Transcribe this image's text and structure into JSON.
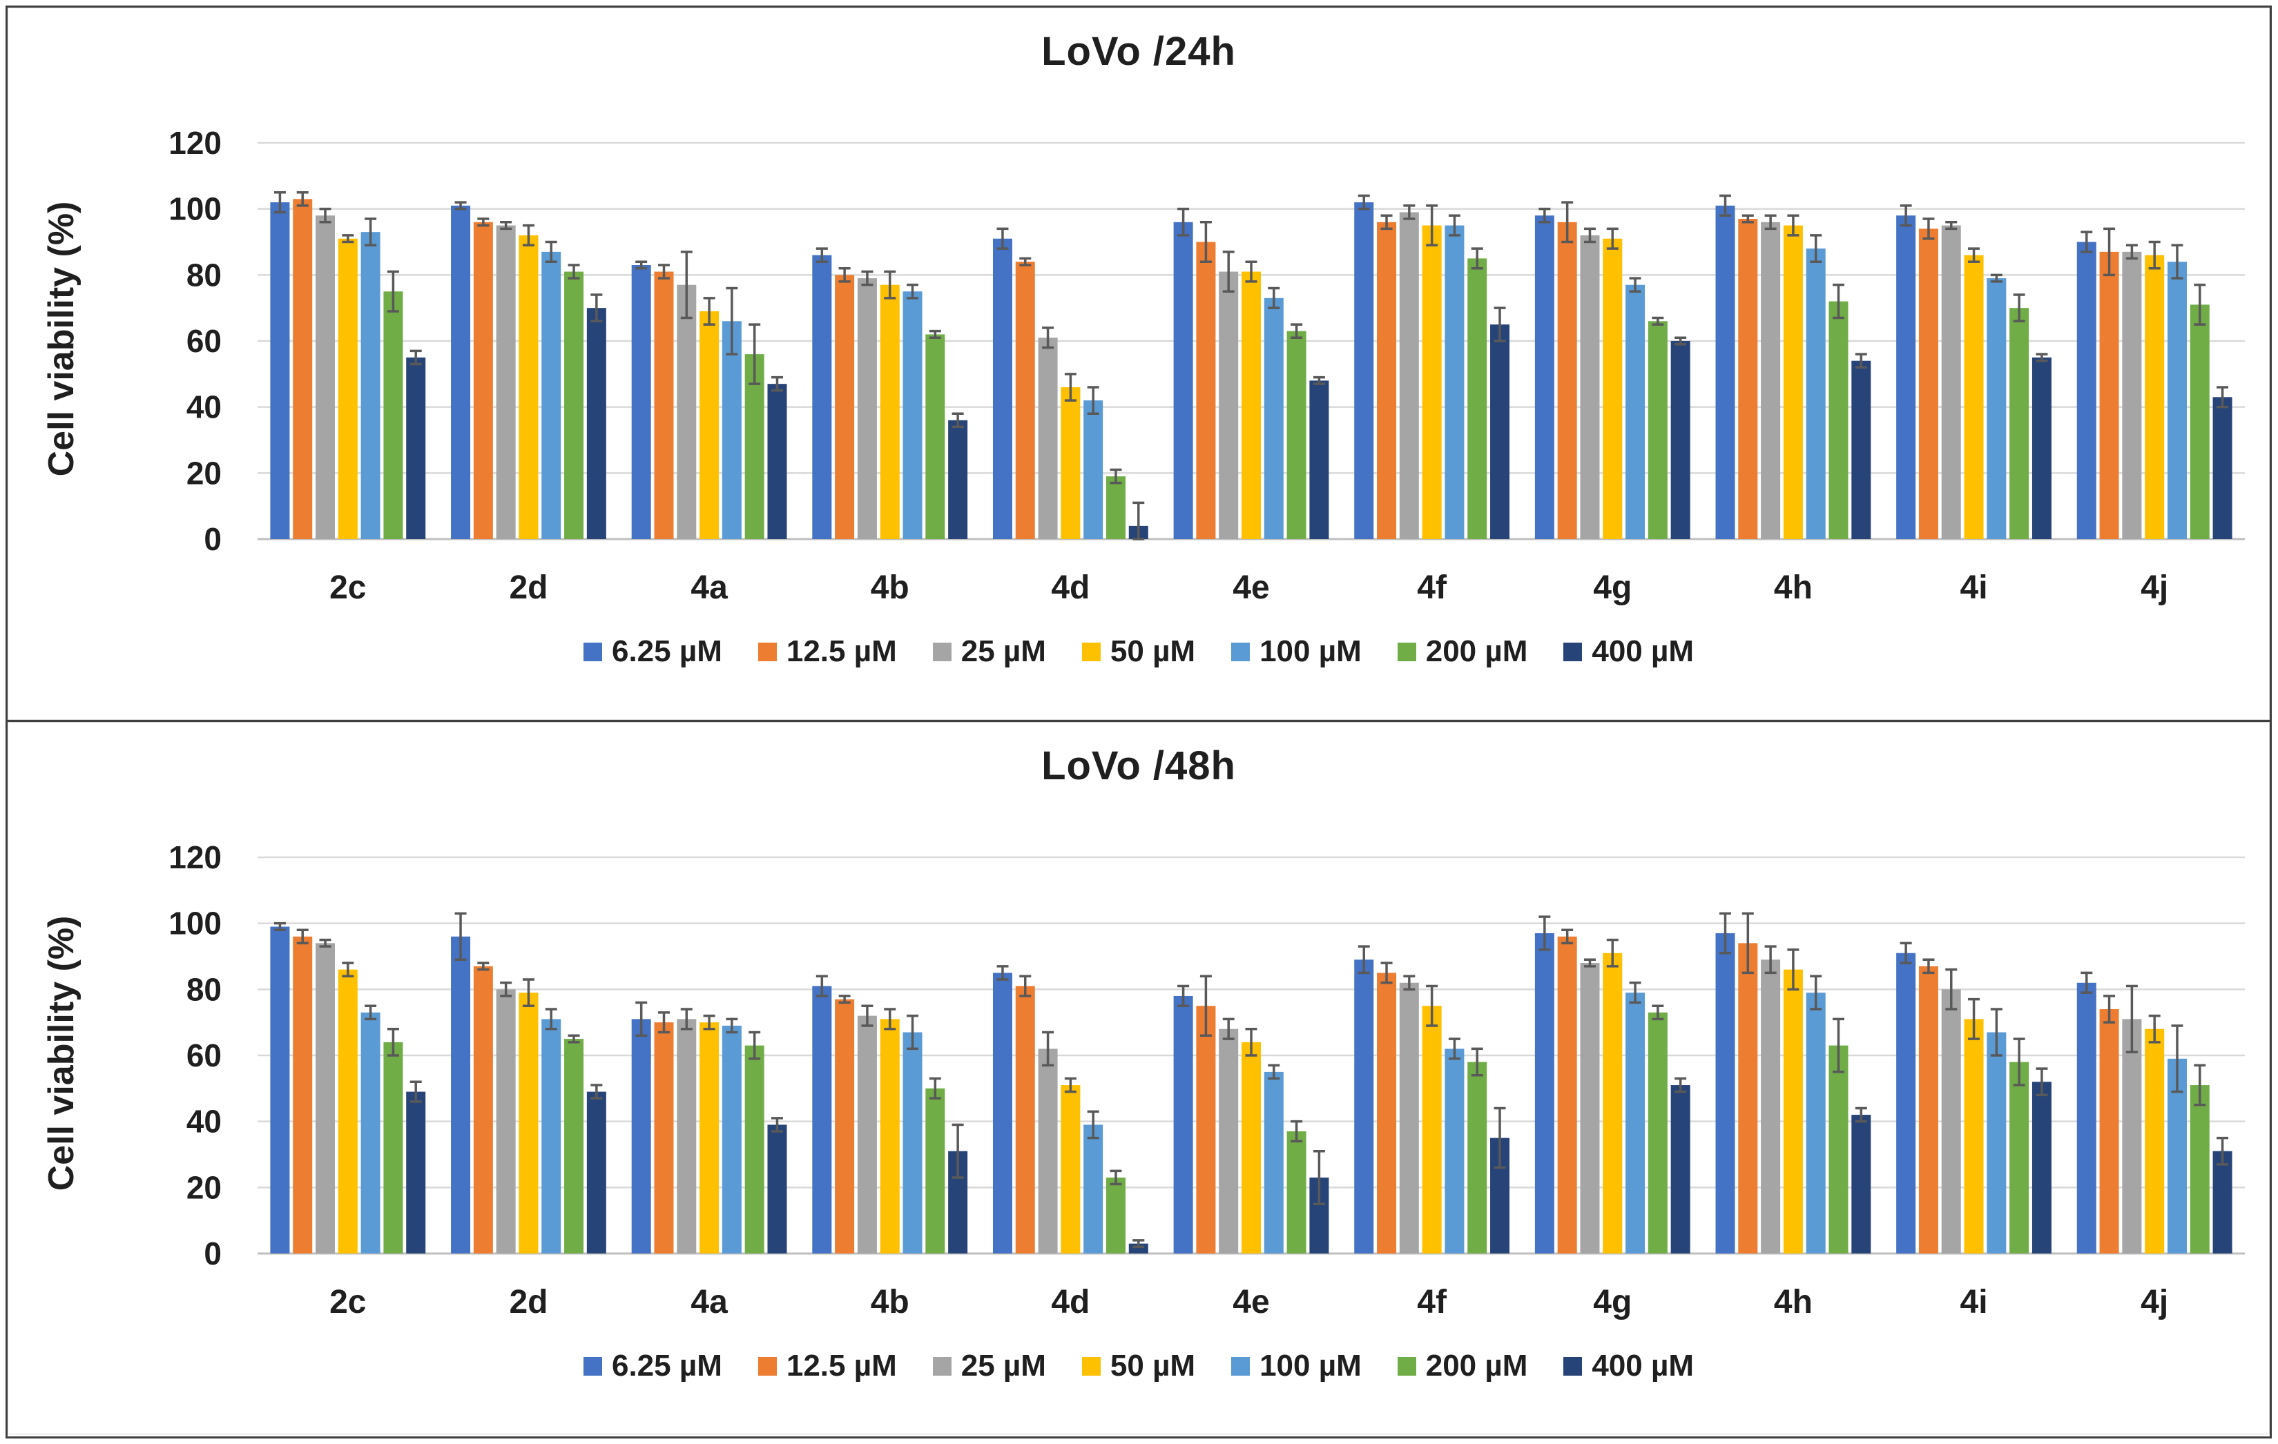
{
  "figure": {
    "outer_border_color": "#3f3f3f",
    "panel_border_color": "#d9d9d9",
    "grid_color": "#d9d9d9",
    "axis_color": "#bfbfbf",
    "error_bar_color": "#595959",
    "text_color": "#1f1f1f"
  },
  "chart_data": [
    {
      "type": "bar",
      "title": "LoVo /24h",
      "xlabel": "",
      "ylabel": "Cell viability (%)",
      "ylim": [
        0,
        120
      ],
      "yticks": [
        0,
        20,
        40,
        60,
        80,
        100,
        120
      ],
      "grid": true,
      "legend_position": "bottom",
      "error_bars": true,
      "categories": [
        "2c",
        "2d",
        "4a",
        "4b",
        "4d",
        "4e",
        "4f",
        "4g",
        "4h",
        "4i",
        "4j"
      ],
      "series": [
        {
          "name": "6.25 µM",
          "color": "#4472C4",
          "values": [
            102,
            101,
            83,
            86,
            91,
            96,
            102,
            98,
            101,
            98,
            90
          ],
          "errors": [
            3,
            1,
            1,
            2,
            3,
            4,
            2,
            2,
            3,
            3,
            3
          ]
        },
        {
          "name": "12.5 µM",
          "color": "#ED7D31",
          "values": [
            103,
            96,
            81,
            80,
            84,
            90,
            96,
            96,
            97,
            94,
            87
          ],
          "errors": [
            2,
            1,
            2,
            2,
            1,
            6,
            2,
            6,
            1,
            3,
            7
          ]
        },
        {
          "name": "25 µM",
          "color": "#A5A5A5",
          "values": [
            98,
            95,
            77,
            79,
            61,
            81,
            99,
            92,
            96,
            95,
            87
          ],
          "errors": [
            2,
            1,
            10,
            2,
            3,
            6,
            2,
            2,
            2,
            1,
            2
          ]
        },
        {
          "name": "50 µM",
          "color": "#FFC000",
          "values": [
            91,
            92,
            69,
            77,
            46,
            81,
            95,
            91,
            95,
            86,
            86
          ],
          "errors": [
            1,
            3,
            4,
            4,
            4,
            3,
            6,
            3,
            3,
            2,
            4
          ]
        },
        {
          "name": "100 µM",
          "color": "#5B9BD5",
          "values": [
            93,
            87,
            66,
            75,
            42,
            73,
            95,
            77,
            88,
            79,
            84
          ],
          "errors": [
            4,
            3,
            10,
            2,
            4,
            3,
            3,
            2,
            4,
            1,
            5
          ]
        },
        {
          "name": "200 µM",
          "color": "#70AD47",
          "values": [
            75,
            81,
            56,
            62,
            19,
            63,
            85,
            66,
            72,
            70,
            71
          ],
          "errors": [
            6,
            2,
            9,
            1,
            2,
            2,
            3,
            1,
            5,
            4,
            6
          ]
        },
        {
          "name": "400 µM",
          "color": "#264478",
          "values": [
            55,
            70,
            47,
            36,
            4,
            48,
            65,
            60,
            54,
            55,
            43
          ],
          "errors": [
            2,
            4,
            2,
            2,
            7,
            1,
            5,
            1,
            2,
            1,
            3
          ]
        }
      ]
    },
    {
      "type": "bar",
      "title": "LoVo /48h",
      "xlabel": "",
      "ylabel": "Cell viability (%)",
      "ylim": [
        0,
        120
      ],
      "yticks": [
        0,
        20,
        40,
        60,
        80,
        100,
        120
      ],
      "grid": true,
      "legend_position": "bottom",
      "error_bars": true,
      "categories": [
        "2c",
        "2d",
        "4a",
        "4b",
        "4d",
        "4e",
        "4f",
        "4g",
        "4h",
        "4i",
        "4j"
      ],
      "series": [
        {
          "name": "6.25 µM",
          "color": "#4472C4",
          "values": [
            99,
            96,
            71,
            81,
            85,
            78,
            89,
            97,
            97,
            91,
            82
          ],
          "errors": [
            1,
            7,
            5,
            3,
            2,
            3,
            4,
            5,
            6,
            3,
            3
          ]
        },
        {
          "name": "12.5 µM",
          "color": "#ED7D31",
          "values": [
            96,
            87,
            70,
            77,
            81,
            75,
            85,
            96,
            94,
            87,
            74
          ],
          "errors": [
            2,
            1,
            3,
            1,
            3,
            9,
            3,
            2,
            9,
            2,
            4
          ]
        },
        {
          "name": "25 µM",
          "color": "#A5A5A5",
          "values": [
            94,
            80,
            71,
            72,
            62,
            68,
            82,
            88,
            89,
            80,
            71
          ],
          "errors": [
            1,
            2,
            3,
            3,
            5,
            3,
            2,
            1,
            4,
            6,
            10
          ]
        },
        {
          "name": "50 µM",
          "color": "#FFC000",
          "values": [
            86,
            79,
            70,
            71,
            51,
            64,
            75,
            91,
            86,
            71,
            68
          ],
          "errors": [
            2,
            4,
            2,
            3,
            2,
            4,
            6,
            4,
            6,
            6,
            4
          ]
        },
        {
          "name": "100 µM",
          "color": "#5B9BD5",
          "values": [
            73,
            71,
            69,
            67,
            39,
            55,
            62,
            79,
            79,
            67,
            59
          ],
          "errors": [
            2,
            3,
            2,
            5,
            4,
            2,
            3,
            3,
            5,
            7,
            10
          ]
        },
        {
          "name": "200 µM",
          "color": "#70AD47",
          "values": [
            64,
            65,
            63,
            50,
            23,
            37,
            58,
            73,
            63,
            58,
            51
          ],
          "errors": [
            4,
            1,
            4,
            3,
            2,
            3,
            4,
            2,
            8,
            7,
            6
          ]
        },
        {
          "name": "400 µM",
          "color": "#264478",
          "values": [
            49,
            49,
            39,
            31,
            3,
            23,
            35,
            51,
            42,
            52,
            31
          ],
          "errors": [
            3,
            2,
            2,
            8,
            1,
            8,
            9,
            2,
            2,
            4,
            4
          ]
        }
      ]
    }
  ]
}
